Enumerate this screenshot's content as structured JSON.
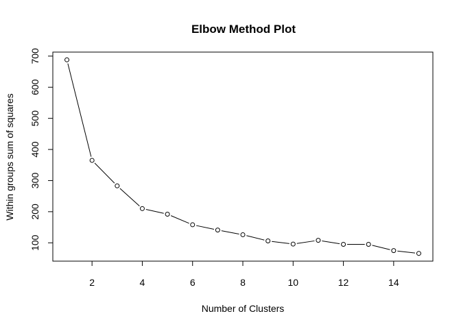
{
  "chart_data": {
    "type": "line",
    "title": "Elbow Method Plot",
    "xlabel": "Number of Clusters",
    "ylabel": "Within groups sum of squares",
    "x": [
      1,
      2,
      3,
      4,
      5,
      6,
      7,
      8,
      9,
      10,
      11,
      12,
      13,
      14,
      15
    ],
    "series": [
      {
        "values": [
          688,
          365,
          283,
          210,
          192,
          158,
          141,
          126,
          106,
          96,
          108,
          95,
          95,
          75,
          66
        ]
      }
    ],
    "x_ticks": [
      2,
      4,
      6,
      8,
      10,
      12,
      14
    ],
    "y_ticks": [
      100,
      200,
      300,
      400,
      500,
      600,
      700
    ],
    "xlim": [
      0.44,
      15.56
    ],
    "ylim": [
      41.1,
      712.9
    ],
    "grid": false,
    "markers": "open-circle",
    "line_color": "#000000"
  }
}
